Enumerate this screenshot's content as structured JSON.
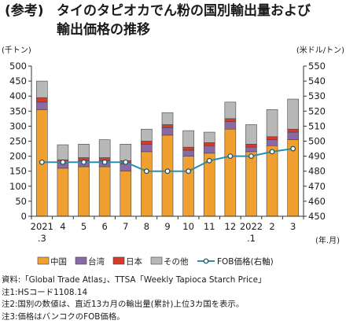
{
  "title": {
    "tag": "(参考)",
    "line1": "タイのタピオカでん粉の国別輸出量および",
    "line2": "輸出価格の推移"
  },
  "chart_data": {
    "type": "bar",
    "stacked": true,
    "categories": [
      "2021",
      "4",
      "5",
      "6",
      "7",
      "8",
      "9",
      "10",
      "11",
      "12",
      "2022",
      "2",
      "3"
    ],
    "category_sublabels": [
      ".3",
      "",
      "",
      "",
      "",
      "",
      "",
      "",
      "",
      "",
      ".1",
      "",
      ""
    ],
    "series": [
      {
        "name": "中国",
        "color": "#f0a030",
        "values": [
          355,
          160,
          165,
          165,
          150,
          215,
          270,
          200,
          210,
          290,
          215,
          235,
          255
        ]
      },
      {
        "name": "台湾",
        "color": "#8a6aa5",
        "values": [
          25,
          18,
          20,
          20,
          25,
          25,
          25,
          20,
          25,
          25,
          15,
          20,
          25
        ]
      },
      {
        "name": "日本",
        "color": "#d83a2a",
        "values": [
          15,
          10,
          10,
          10,
          10,
          10,
          10,
          10,
          10,
          10,
          10,
          10,
          10
        ]
      },
      {
        "name": "その他",
        "color": "#b8b8b8",
        "values": [
          55,
          50,
          45,
          60,
          55,
          40,
          40,
          55,
          35,
          55,
          65,
          90,
          100
        ]
      }
    ],
    "line_series": {
      "name": "FOB価格(右軸)",
      "color": "#2e8da8",
      "values": [
        486,
        486,
        486,
        486,
        486,
        480,
        480,
        480,
        487,
        490,
        490,
        493,
        495
      ]
    },
    "ylabel": "(千トン)",
    "y2label": "(米ドル/トン)",
    "xlabel": "(年.月)",
    "ylim": [
      0,
      500
    ],
    "y_ticks": [
      0,
      50,
      100,
      150,
      200,
      250,
      300,
      350,
      400,
      450,
      500
    ],
    "y2lim": [
      450,
      550
    ],
    "y2_ticks": [
      450,
      460,
      470,
      480,
      490,
      500,
      510,
      520,
      530,
      540,
      550
    ],
    "grid": false,
    "legend_position": "bottom"
  },
  "notes": [
    "資料:「Global Trade Atlas」、TTSA「Weekly Tapioca Starch Price」",
    "注1:HSコード1108.14",
    "注2:国別の数値は、直近13カ月の輸出量(累計)上位3カ国を表示。",
    "注3:価格はバンコクのFOB価格。"
  ]
}
